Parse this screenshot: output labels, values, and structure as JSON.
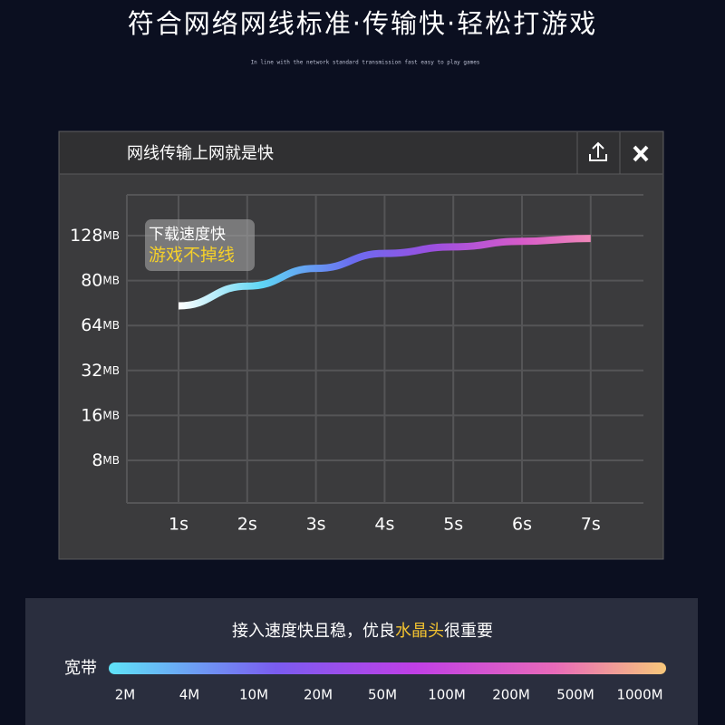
{
  "header": {
    "title": "符合网络网线标准·传输快·轻松打游戏",
    "subtitle": "In line with the network standard transmission fast easy to play games"
  },
  "window": {
    "title": "网线传输上网就是快"
  },
  "chart_data": {
    "type": "line",
    "categories": [
      "1s",
      "2s",
      "3s",
      "4s",
      "5s",
      "6s",
      "7s"
    ],
    "values": [
      71,
      78,
      93,
      109,
      116,
      122,
      125
    ],
    "yticks": [
      {
        "value": 8,
        "label": "8MB"
      },
      {
        "value": 16,
        "label": "16MB"
      },
      {
        "value": 32,
        "label": "32MB"
      },
      {
        "value": 64,
        "label": "64MB"
      },
      {
        "value": 80,
        "label": "80MB"
      },
      {
        "value": 128,
        "label": "128MB"
      }
    ],
    "grid": true,
    "annotation": [
      "下载速度快",
      "游戏不掉线"
    ]
  },
  "footer": {
    "caption": [
      "接入速度快且稳，优良",
      "水晶头",
      "很重要"
    ],
    "bandwidth_label": "宽带",
    "bandwidth_scale": [
      "2M",
      "4M",
      "10M",
      "20M",
      "50M",
      "100M",
      "200M",
      "500M",
      "1000M"
    ]
  }
}
